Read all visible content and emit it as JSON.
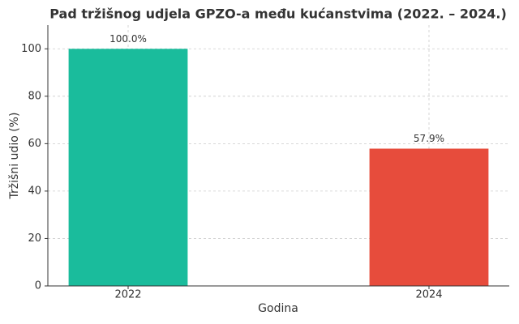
{
  "chart_data": {
    "type": "bar",
    "title": "Pad tržišnog udjela GPZO-a među kućanstvima (2022. – 2024.)",
    "x_label": "Godina",
    "y_label": "Tržišni udio (%)",
    "categories": [
      "2022",
      "2024"
    ],
    "values": [
      100,
      57.9
    ],
    "value_labels": [
      "100.0%",
      "57.9%"
    ],
    "colors": [
      "#1abc9c",
      "#e74c3c"
    ],
    "ylim": [
      0,
      110
    ],
    "yticks": [
      0,
      20,
      40,
      60,
      80,
      100
    ],
    "grid": true
  }
}
